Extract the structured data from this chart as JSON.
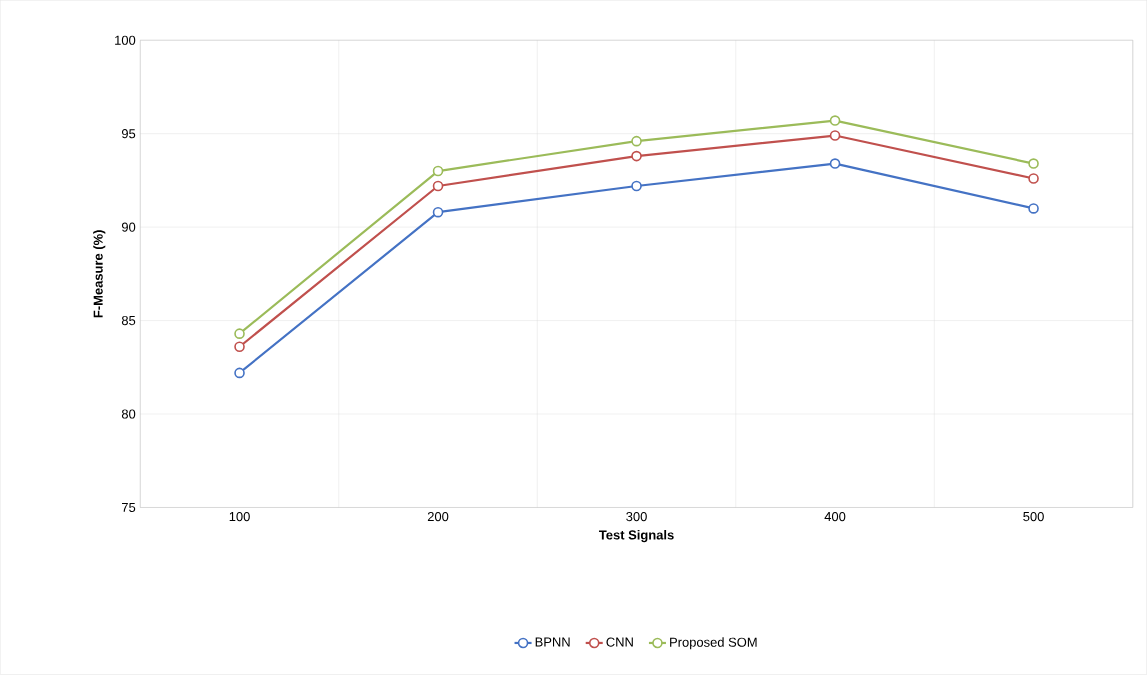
{
  "chart_data": {
    "type": "line",
    "xlabel": "Test Signals",
    "ylabel": "F-Measure (%)",
    "categories": [
      "100",
      "200",
      "300",
      "400",
      "500"
    ],
    "series": [
      {
        "name": "BPNN",
        "color": "#4472c4",
        "values": [
          82.2,
          90.8,
          92.2,
          93.4,
          91.0
        ]
      },
      {
        "name": "CNN",
        "color": "#c0504d",
        "values": [
          83.6,
          92.2,
          93.8,
          94.9,
          92.6
        ]
      },
      {
        "name": "Proposed SOM",
        "color": "#9bbb59",
        "values": [
          84.3,
          93.0,
          94.6,
          95.7,
          93.4
        ]
      }
    ],
    "ylim": [
      75,
      100
    ],
    "yticks": [
      75,
      80,
      85,
      90,
      95,
      100
    ],
    "grid": true,
    "legend": "bottom",
    "marker": "circle",
    "line_style": "solid"
  }
}
